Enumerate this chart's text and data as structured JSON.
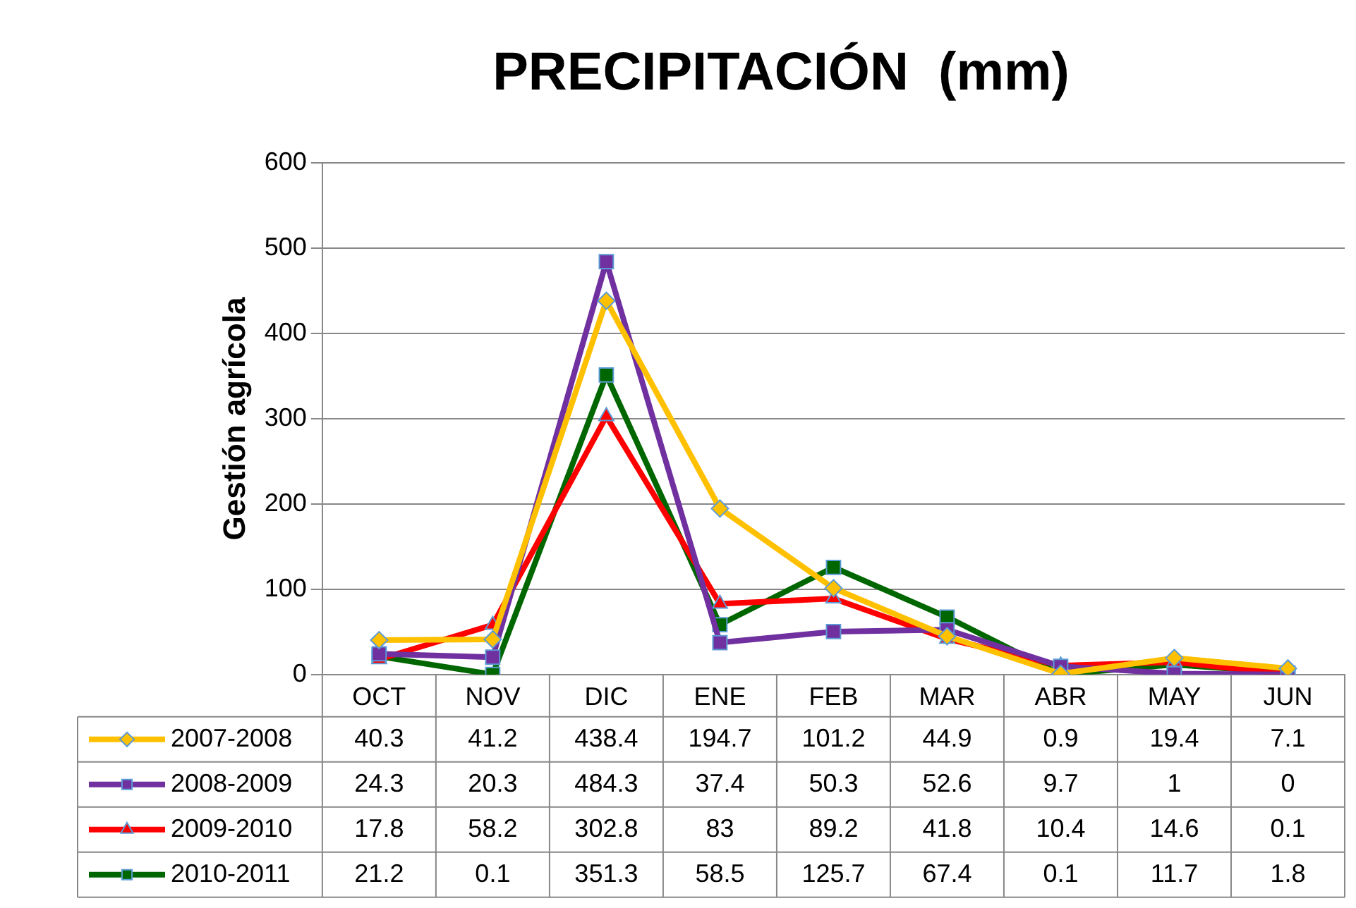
{
  "chart_data": {
    "type": "line",
    "title": "PRECIPITACIÓN  (mm)",
    "ylabel": "Gestión agrícola",
    "categories": [
      "OCT",
      "NOV",
      "DIC",
      "ENE",
      "FEB",
      "MAR",
      "ABR",
      "MAY",
      "JUN"
    ],
    "series": [
      {
        "name": "2007-2008",
        "color": "#ffc000",
        "marker": "diamond",
        "values": [
          40.3,
          41.2,
          438.4,
          194.7,
          101.2,
          44.9,
          0.9,
          19.4,
          7.1
        ]
      },
      {
        "name": "2008-2009",
        "color": "#7030a0",
        "marker": "square",
        "values": [
          24.3,
          20.3,
          484.3,
          37.4,
          50.3,
          52.6,
          9.7,
          1,
          0
        ]
      },
      {
        "name": "2009-2010",
        "color": "#ff0000",
        "marker": "triangle",
        "values": [
          17.8,
          58.2,
          302.8,
          83,
          89.2,
          41.8,
          10.4,
          14.6,
          0.1
        ]
      },
      {
        "name": "2010-2011",
        "color": "#006600",
        "marker": "square",
        "values": [
          21.2,
          0.1,
          351.3,
          58.5,
          125.7,
          67.4,
          0.1,
          11.7,
          1.8
        ]
      }
    ],
    "ylim": [
      0,
      600
    ],
    "yticks": [
      0,
      100,
      200,
      300,
      400,
      500,
      600
    ],
    "grid": "y",
    "legend": "bottom",
    "data_labels": true,
    "line_style": "solid"
  }
}
